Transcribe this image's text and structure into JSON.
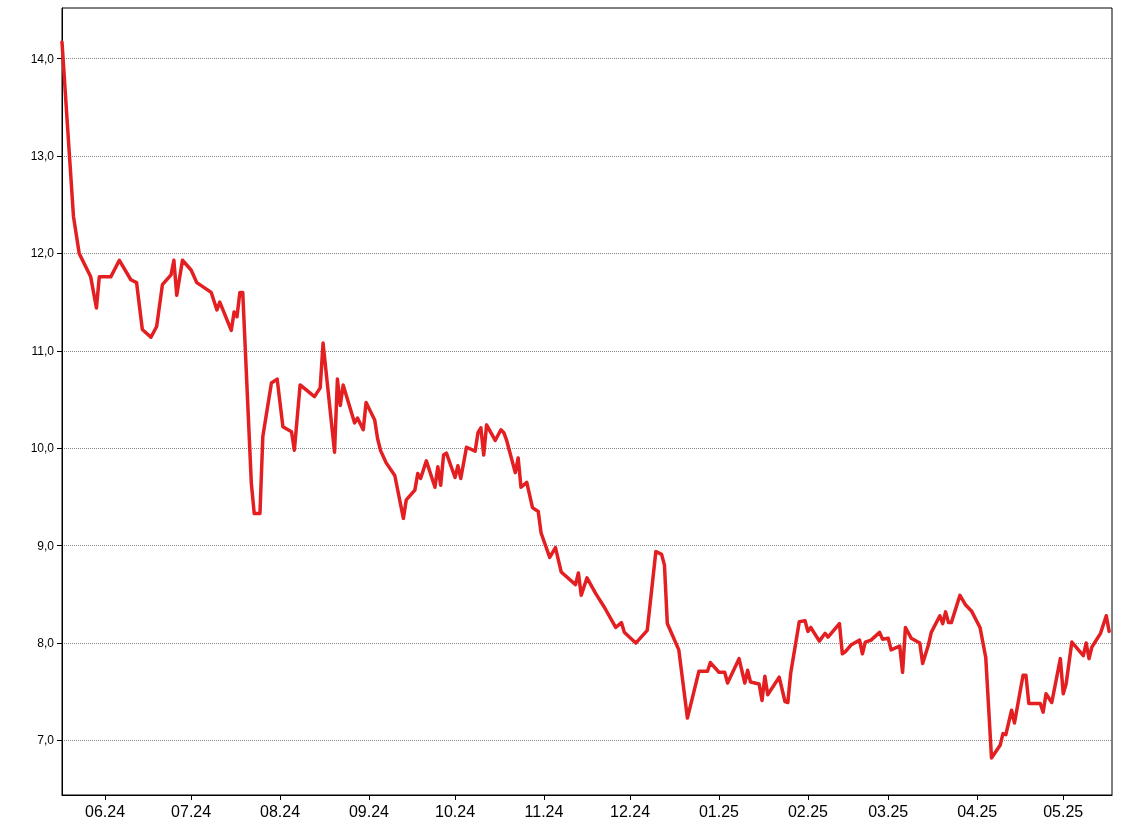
{
  "chart_data": {
    "type": "line",
    "marker": "none",
    "grid": "y",
    "xlim": [
      "2024-05-17",
      "2025-05-18"
    ],
    "xticks": [
      {
        "value": "2024-06-01",
        "label": "06.24"
      },
      {
        "value": "2024-07-01",
        "label": "07.24"
      },
      {
        "value": "2024-08-01",
        "label": "08.24"
      },
      {
        "value": "2024-09-01",
        "label": "09.24"
      },
      {
        "value": "2024-10-01",
        "label": "10.24"
      },
      {
        "value": "2024-11-01",
        "label": "11.24"
      },
      {
        "value": "2024-12-01",
        "label": "12.24"
      },
      {
        "value": "2025-01-01",
        "label": "01.25"
      },
      {
        "value": "2025-02-01",
        "label": "02.25"
      },
      {
        "value": "2025-03-01",
        "label": "03.25"
      },
      {
        "value": "2025-04-01",
        "label": "04.25"
      },
      {
        "value": "2025-05-01",
        "label": "05.25"
      }
    ],
    "ylim": [
      6.44,
      14.52
    ],
    "yticks": [
      {
        "value": 7,
        "label": "7,0"
      },
      {
        "value": 8,
        "label": "8,0"
      },
      {
        "value": 9,
        "label": "9,0"
      },
      {
        "value": 10,
        "label": "10,0"
      },
      {
        "value": 11,
        "label": "11,0"
      },
      {
        "value": 12,
        "label": "12,0"
      },
      {
        "value": 13,
        "label": "13,0"
      },
      {
        "value": 14,
        "label": "14,0"
      }
    ],
    "x": [
      "2024-05-17",
      "2024-05-19",
      "2024-05-21",
      "2024-05-23",
      "2024-05-27",
      "2024-05-29",
      "2024-05-30",
      "2024-06-03",
      "2024-06-06",
      "2024-06-10",
      "2024-06-12",
      "2024-06-14",
      "2024-06-17",
      "2024-06-19",
      "2024-06-21",
      "2024-06-24",
      "2024-06-25",
      "2024-06-26",
      "2024-06-28",
      "2024-07-01",
      "2024-07-03",
      "2024-07-08",
      "2024-07-10",
      "2024-07-11",
      "2024-07-15",
      "2024-07-16",
      "2024-07-17",
      "2024-07-18",
      "2024-07-19",
      "2024-07-22",
      "2024-07-23",
      "2024-07-25",
      "2024-07-26",
      "2024-07-29",
      "2024-07-31",
      "2024-08-02",
      "2024-08-05",
      "2024-08-06",
      "2024-08-08",
      "2024-08-13",
      "2024-08-15",
      "2024-08-16",
      "2024-08-20",
      "2024-08-21",
      "2024-08-22",
      "2024-08-23",
      "2024-08-27",
      "2024-08-28",
      "2024-08-30",
      "2024-08-31",
      "2024-09-03",
      "2024-09-04",
      "2024-09-05",
      "2024-09-07",
      "2024-09-10",
      "2024-09-13",
      "2024-09-14",
      "2024-09-17",
      "2024-09-18",
      "2024-09-19",
      "2024-09-21",
      "2024-09-24",
      "2024-09-25",
      "2024-09-26",
      "2024-09-27",
      "2024-09-28",
      "2024-10-01",
      "2024-10-02",
      "2024-10-03",
      "2024-10-05",
      "2024-10-08",
      "2024-10-09",
      "2024-10-10",
      "2024-10-11",
      "2024-10-12",
      "2024-10-15",
      "2024-10-17",
      "2024-10-18",
      "2024-10-19",
      "2024-10-22",
      "2024-10-23",
      "2024-10-24",
      "2024-10-26",
      "2024-10-28",
      "2024-10-30",
      "2024-10-31",
      "2024-11-03",
      "2024-11-05",
      "2024-11-07",
      "2024-11-12",
      "2024-11-13",
      "2024-11-14",
      "2024-11-16",
      "2024-11-19",
      "2024-11-22",
      "2024-11-26",
      "2024-11-28",
      "2024-11-29",
      "2024-12-03",
      "2024-12-07",
      "2024-12-10",
      "2024-12-12",
      "2024-12-13",
      "2024-12-14",
      "2024-12-18",
      "2024-12-21",
      "2024-12-25",
      "2024-12-28",
      "2024-12-29",
      "2025-01-01",
      "2025-01-03",
      "2025-01-04",
      "2025-01-08",
      "2025-01-10",
      "2025-01-11",
      "2025-01-12",
      "2025-01-15",
      "2025-01-16",
      "2025-01-17",
      "2025-01-18",
      "2025-01-22",
      "2025-01-24",
      "2025-01-25",
      "2025-01-26",
      "2025-01-29",
      "2025-01-31",
      "2025-02-01",
      "2025-02-02",
      "2025-02-05",
      "2025-02-07",
      "2025-02-08",
      "2025-02-12",
      "2025-02-13",
      "2025-02-14",
      "2025-02-16",
      "2025-02-19",
      "2025-02-20",
      "2025-02-21",
      "2025-02-23",
      "2025-02-26",
      "2025-02-27",
      "2025-03-01",
      "2025-03-02",
      "2025-03-05",
      "2025-03-06",
      "2025-03-07",
      "2025-03-09",
      "2025-03-12",
      "2025-03-13",
      "2025-03-15",
      "2025-03-16",
      "2025-03-19",
      "2025-03-20",
      "2025-03-21",
      "2025-03-22",
      "2025-03-23",
      "2025-03-26",
      "2025-03-28",
      "2025-03-30",
      "2025-04-02",
      "2025-04-04",
      "2025-04-06",
      "2025-04-09",
      "2025-04-10",
      "2025-04-11",
      "2025-04-13",
      "2025-04-14",
      "2025-04-17",
      "2025-04-18",
      "2025-04-19",
      "2025-04-23",
      "2025-04-24",
      "2025-04-25",
      "2025-04-27",
      "2025-04-30",
      "2025-05-01",
      "2025-05-02",
      "2025-05-04",
      "2025-05-08",
      "2025-05-09",
      "2025-05-10",
      "2025-05-11",
      "2025-05-14",
      "2025-05-16",
      "2025-05-17"
    ],
    "series": [
      {
        "color": "#e41f22",
        "values": [
          14.17,
          13.27,
          12.38,
          12.0,
          11.76,
          11.44,
          11.76,
          11.76,
          11.93,
          11.73,
          11.7,
          11.22,
          11.14,
          11.25,
          11.68,
          11.78,
          11.93,
          11.57,
          11.93,
          11.83,
          11.7,
          11.6,
          11.42,
          11.5,
          11.21,
          11.4,
          11.35,
          11.6,
          11.6,
          9.64,
          9.33,
          9.33,
          10.12,
          10.67,
          10.71,
          10.22,
          10.17,
          9.98,
          10.65,
          10.53,
          10.62,
          11.08,
          9.96,
          10.71,
          10.44,
          10.65,
          10.26,
          10.31,
          10.19,
          10.47,
          10.29,
          10.1,
          9.98,
          9.85,
          9.72,
          9.28,
          9.47,
          9.57,
          9.74,
          9.69,
          9.87,
          9.6,
          9.81,
          9.62,
          9.93,
          9.95,
          9.7,
          9.82,
          9.69,
          10.01,
          9.97,
          10.16,
          10.21,
          9.93,
          10.24,
          10.08,
          10.19,
          10.16,
          10.08,
          9.75,
          9.9,
          9.6,
          9.65,
          9.39,
          9.35,
          9.13,
          8.88,
          8.98,
          8.73,
          8.6,
          8.72,
          8.49,
          8.67,
          8.51,
          8.37,
          8.16,
          8.21,
          8.11,
          8.0,
          8.13,
          8.94,
          8.91,
          8.8,
          8.2,
          7.93,
          7.23,
          7.71,
          7.71,
          7.8,
          7.7,
          7.7,
          7.59,
          7.84,
          7.59,
          7.72,
          7.6,
          7.58,
          7.41,
          7.66,
          7.47,
          7.65,
          7.4,
          7.39,
          7.69,
          8.22,
          8.23,
          8.12,
          8.16,
          8.02,
          8.1,
          8.06,
          8.2,
          7.89,
          7.91,
          7.98,
          8.03,
          7.89,
          8.01,
          8.03,
          8.11,
          8.04,
          8.05,
          7.93,
          7.97,
          7.7,
          8.16,
          8.05,
          8.0,
          7.79,
          7.98,
          8.11,
          8.28,
          8.2,
          8.32,
          8.21,
          8.21,
          8.49,
          8.39,
          8.33,
          8.16,
          7.85,
          6.82,
          6.95,
          7.07,
          7.06,
          7.31,
          7.18,
          7.67,
          7.67,
          7.38,
          7.38,
          7.29,
          7.48,
          7.39,
          7.84,
          7.48,
          7.58,
          8.01,
          7.87,
          8.0,
          7.84,
          7.96,
          8.1,
          8.28,
          8.12
        ]
      }
    ]
  }
}
